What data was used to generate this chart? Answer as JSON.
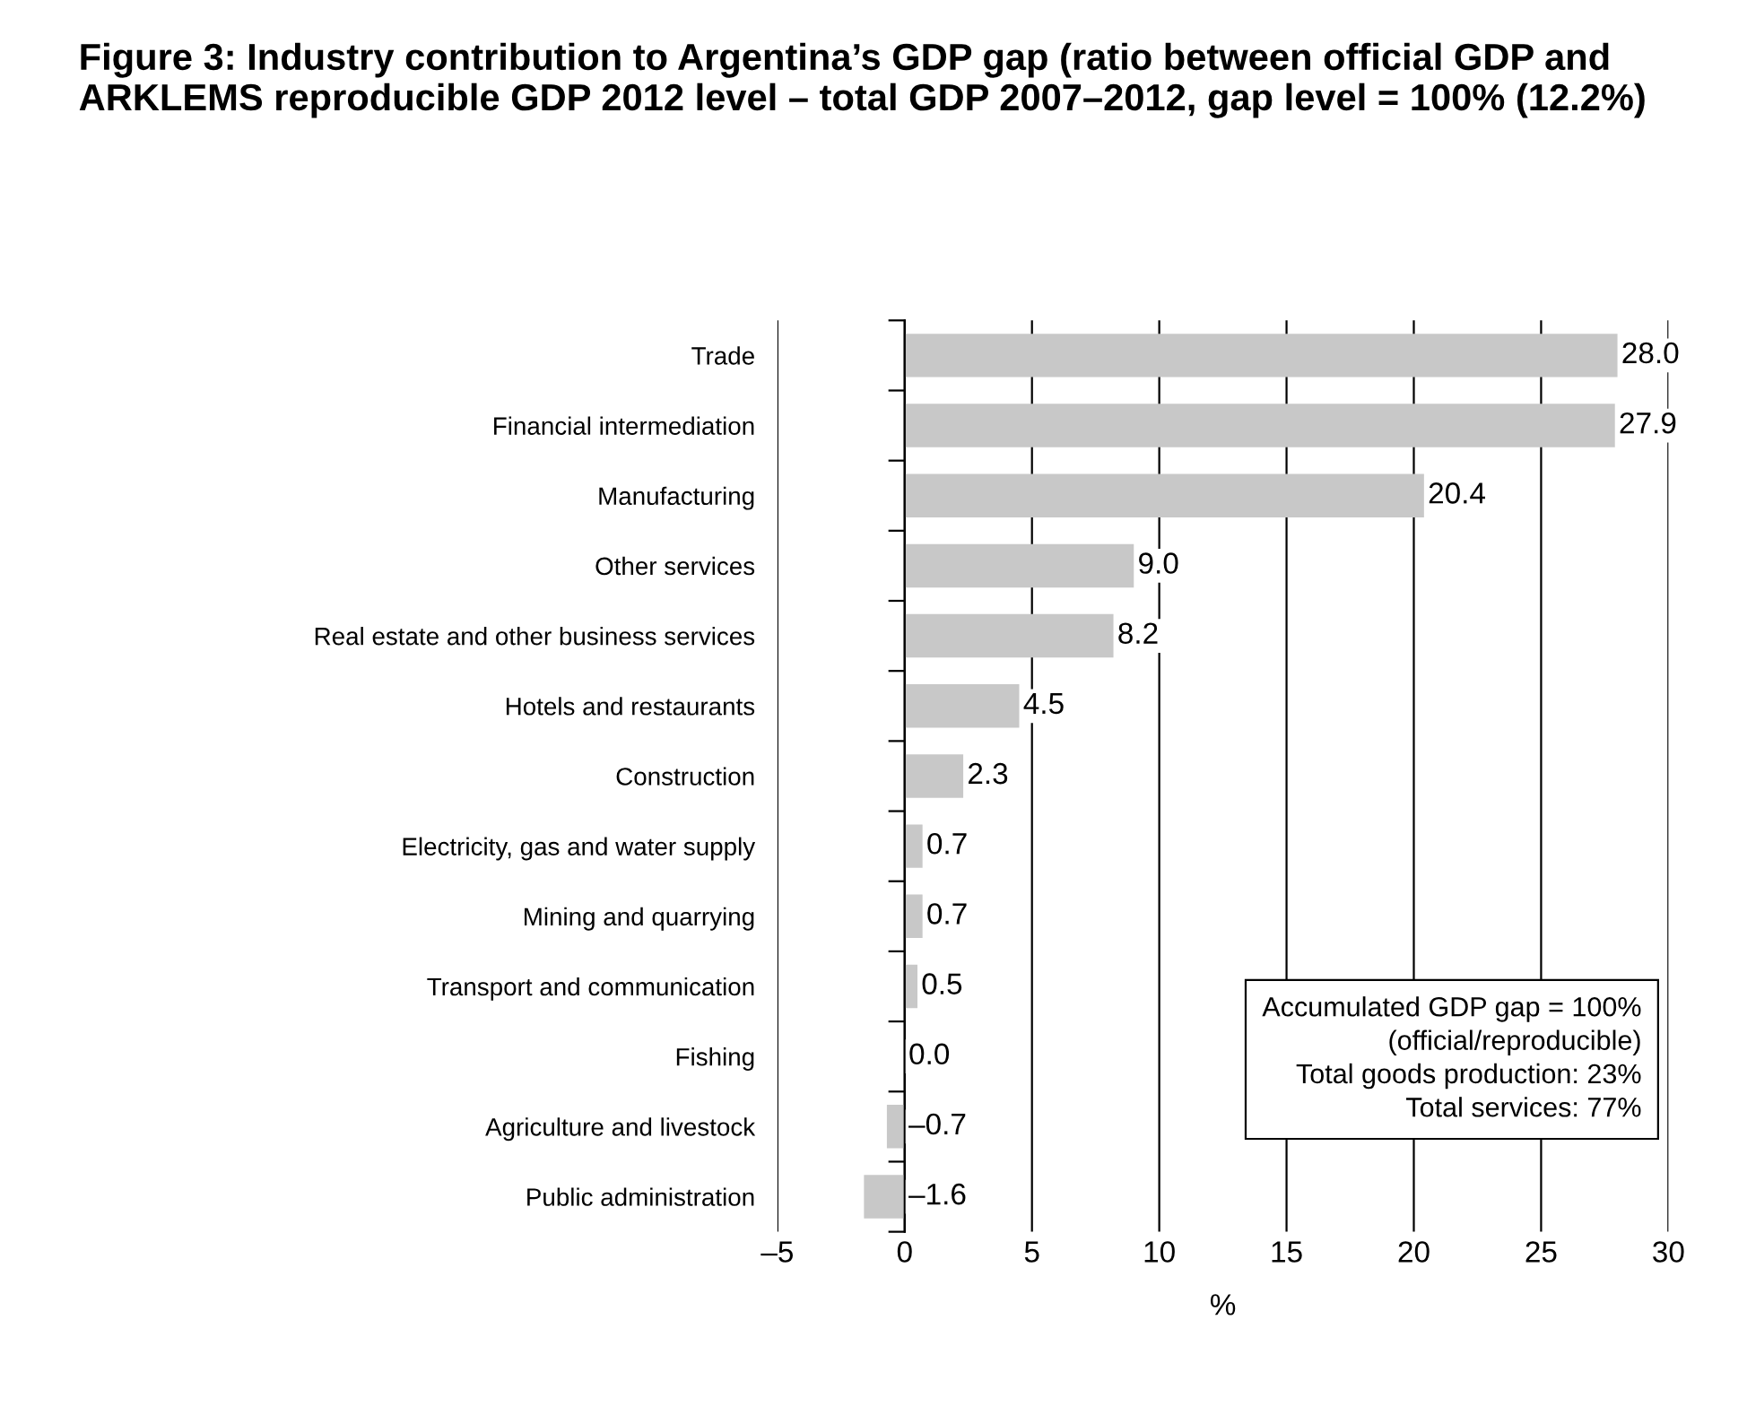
{
  "chart_data": {
    "type": "bar",
    "orientation": "horizontal",
    "title": "Figure 3: Industry contribution to Argentina’s GDP gap (ratio between official GDP and ARKLEMS reproducible GDP 2012 level – total GDP 2007–2012, gap level = 100% (12.2%)",
    "xlabel": "%",
    "categories": [
      "Trade",
      "Financial intermediation",
      "Manufacturing",
      "Other services",
      "Real estate and other business services",
      "Hotels and restaurants",
      "Construction",
      "Electricity, gas and water supply",
      "Mining and quarrying",
      "Transport and communication",
      "Fishing",
      "Agriculture and livestock",
      "Public administration"
    ],
    "values": [
      28.0,
      27.9,
      20.4,
      9.0,
      8.2,
      4.5,
      2.3,
      0.7,
      0.7,
      0.5,
      0.0,
      -0.7,
      -1.6
    ],
    "value_labels": [
      "28.0",
      "27.9",
      "20.4",
      "9.0",
      "8.2",
      "4.5",
      "2.3",
      "0.7",
      "0.7",
      "0.5",
      "0.0",
      "–0.7",
      "–1.6"
    ],
    "color": "#c8c8c8",
    "xlim": [
      -5,
      30
    ],
    "xticks": [
      {
        "value": -5,
        "label": "–5"
      },
      0,
      5,
      10,
      15,
      20,
      25,
      30
    ],
    "grid": "x",
    "annotations": [
      "Accumulated GDP gap = 100%\n      (official/reproducible)\nTotal goods production: 23%\nTotal services: 77%"
    ]
  }
}
